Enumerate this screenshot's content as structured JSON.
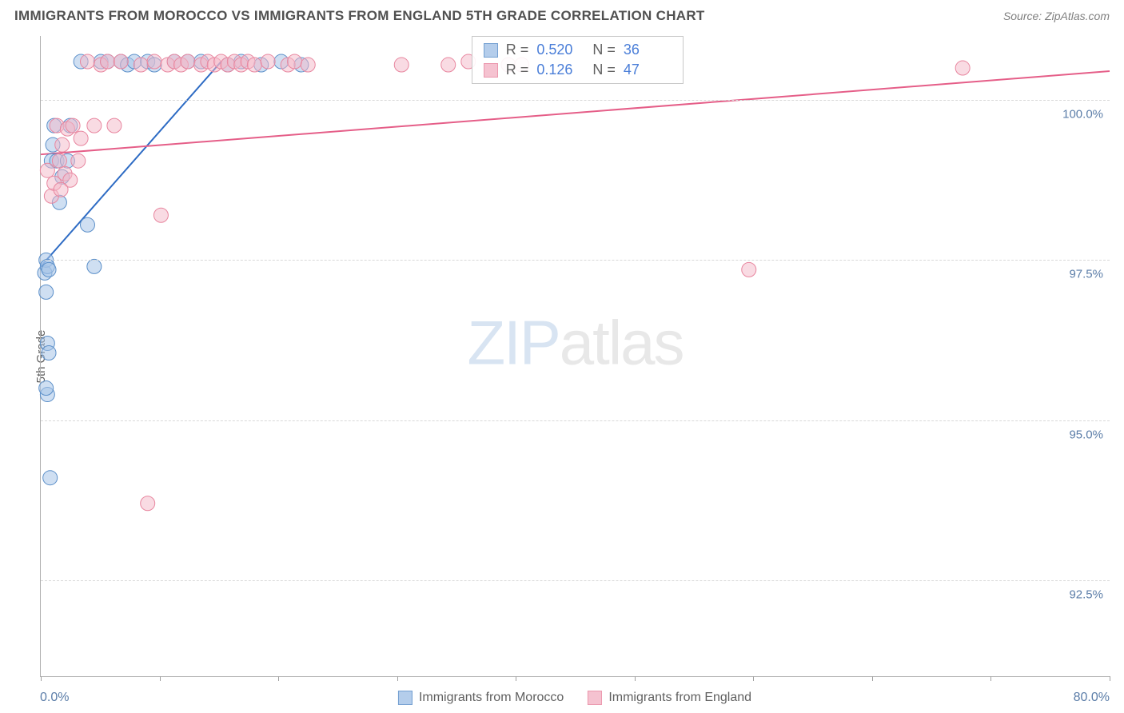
{
  "title": "IMMIGRANTS FROM MOROCCO VS IMMIGRANTS FROM ENGLAND 5TH GRADE CORRELATION CHART",
  "source": "Source: ZipAtlas.com",
  "ylabel": "5th Grade",
  "watermark_a": "ZIP",
  "watermark_b": "atlas",
  "chart": {
    "type": "scatter",
    "xlim": [
      0,
      80
    ],
    "ylim": [
      91,
      101
    ],
    "yticks": [
      {
        "v": 92.5,
        "label": "92.5%"
      },
      {
        "v": 95.0,
        "label": "95.0%"
      },
      {
        "v": 97.5,
        "label": "97.5%"
      },
      {
        "v": 100.0,
        "label": "100.0%"
      }
    ],
    "xticks": [
      0,
      8.89,
      17.78,
      26.67,
      35.56,
      44.44,
      53.33,
      62.22,
      71.11,
      80
    ],
    "x_min_label": "0.0%",
    "x_max_label": "80.0%",
    "series": [
      {
        "name": "Immigrants from Morocco",
        "fill": "#a8c5e8",
        "stroke": "#5b8fc9",
        "fill_opacity": 0.55,
        "r_value": "0.520",
        "n_value": "36",
        "regression": {
          "x1": 0,
          "y1": 97.4,
          "x2": 13.5,
          "y2": 100.6,
          "color": "#2d6bc4",
          "width": 2
        },
        "points": [
          [
            0.3,
            97.3
          ],
          [
            0.4,
            97.5
          ],
          [
            0.5,
            97.4
          ],
          [
            0.6,
            97.35
          ],
          [
            0.4,
            97.0
          ],
          [
            0.5,
            96.2
          ],
          [
            0.6,
            96.05
          ],
          [
            0.5,
            95.4
          ],
          [
            0.4,
            95.5
          ],
          [
            0.7,
            94.1
          ],
          [
            0.8,
            99.05
          ],
          [
            0.9,
            99.3
          ],
          [
            1.0,
            99.6
          ],
          [
            1.2,
            99.05
          ],
          [
            1.4,
            98.4
          ],
          [
            1.6,
            98.8
          ],
          [
            2.0,
            99.05
          ],
          [
            2.2,
            99.6
          ],
          [
            3.0,
            100.6
          ],
          [
            3.5,
            98.05
          ],
          [
            4.0,
            97.4
          ],
          [
            4.5,
            100.6
          ],
          [
            5.0,
            100.6
          ],
          [
            6.0,
            100.6
          ],
          [
            6.5,
            100.55
          ],
          [
            7.0,
            100.6
          ],
          [
            8.0,
            100.6
          ],
          [
            8.5,
            100.55
          ],
          [
            10.0,
            100.6
          ],
          [
            11.0,
            100.6
          ],
          [
            12.0,
            100.6
          ],
          [
            14.0,
            100.55
          ],
          [
            15.0,
            100.6
          ],
          [
            16.5,
            100.55
          ],
          [
            18.0,
            100.6
          ],
          [
            19.5,
            100.55
          ]
        ]
      },
      {
        "name": "Immigrants from England",
        "fill": "#f4b8c8",
        "stroke": "#e8869f",
        "fill_opacity": 0.5,
        "r_value": "0.126",
        "n_value": "47",
        "regression": {
          "x1": 0,
          "y1": 99.15,
          "x2": 80,
          "y2": 100.45,
          "color": "#e55e88",
          "width": 2
        },
        "points": [
          [
            0.5,
            98.9
          ],
          [
            0.8,
            98.5
          ],
          [
            1.0,
            98.7
          ],
          [
            1.2,
            99.6
          ],
          [
            1.4,
            99.05
          ],
          [
            1.6,
            99.3
          ],
          [
            1.8,
            98.85
          ],
          [
            2.0,
            99.55
          ],
          [
            2.4,
            99.6
          ],
          [
            2.8,
            99.05
          ],
          [
            3.0,
            99.4
          ],
          [
            3.5,
            100.6
          ],
          [
            4.0,
            99.6
          ],
          [
            4.5,
            100.55
          ],
          [
            5.0,
            100.6
          ],
          [
            5.5,
            99.6
          ],
          [
            6.0,
            100.6
          ],
          [
            7.5,
            100.55
          ],
          [
            8.0,
            93.7
          ],
          [
            8.5,
            100.6
          ],
          [
            9.0,
            98.2
          ],
          [
            9.5,
            100.55
          ],
          [
            10.0,
            100.6
          ],
          [
            10.5,
            100.55
          ],
          [
            11.0,
            100.6
          ],
          [
            12.0,
            100.55
          ],
          [
            12.5,
            100.6
          ],
          [
            13.0,
            100.55
          ],
          [
            13.5,
            100.6
          ],
          [
            14.0,
            100.55
          ],
          [
            14.5,
            100.6
          ],
          [
            15.0,
            100.55
          ],
          [
            15.5,
            100.6
          ],
          [
            16.0,
            100.55
          ],
          [
            17.0,
            100.6
          ],
          [
            18.5,
            100.55
          ],
          [
            19.0,
            100.6
          ],
          [
            20.0,
            100.55
          ],
          [
            27.0,
            100.55
          ],
          [
            30.5,
            100.55
          ],
          [
            32.0,
            100.6
          ],
          [
            35.0,
            100.55
          ],
          [
            36.0,
            100.55
          ],
          [
            53.0,
            97.35
          ],
          [
            69.0,
            100.5
          ],
          [
            2.2,
            98.75
          ],
          [
            1.5,
            98.6
          ]
        ]
      }
    ],
    "marker_radius": 9,
    "corr_box": {
      "left_pct": 40.3,
      "top_pct": 0
    }
  }
}
